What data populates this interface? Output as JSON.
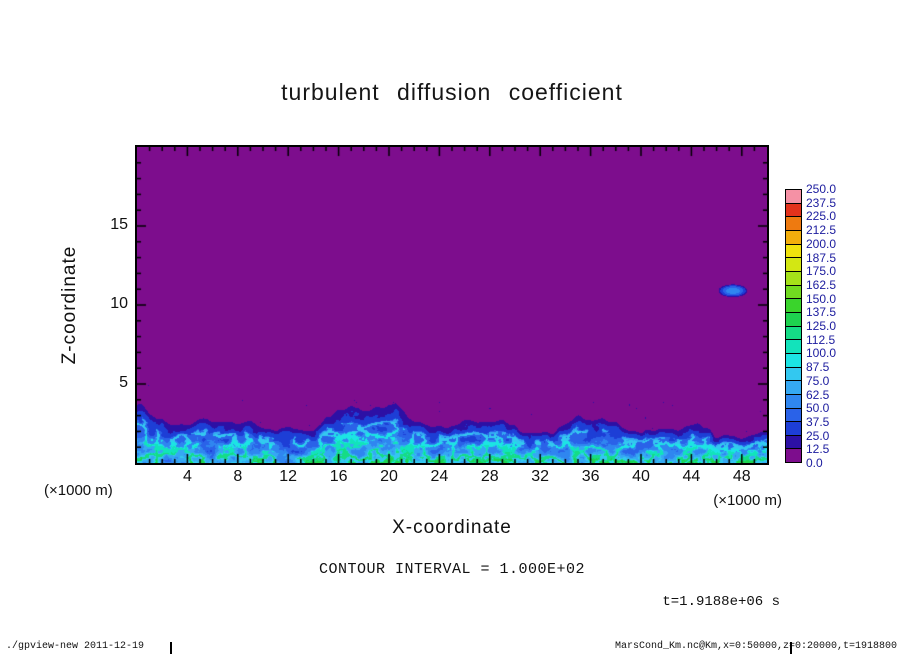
{
  "title": "turbulent diffusion coefficient",
  "plot": {
    "x_axis": {
      "label": "X-coordinate",
      "unit_label": "(×1000 m)",
      "range": [
        0,
        50
      ],
      "major_ticks": [
        4,
        8,
        12,
        16,
        20,
        24,
        28,
        32,
        36,
        40,
        44,
        48
      ],
      "minor_tick_step": 1
    },
    "y_axis": {
      "label": "Z-coordinate",
      "unit_label": "(×1000 m)",
      "range": [
        0,
        20
      ],
      "major_ticks": [
        5,
        10,
        15
      ],
      "minor_tick_step": 1
    },
    "frame_color": "#000000"
  },
  "colorbar": {
    "labels_top_to_bottom": [
      "250.0",
      "237.5",
      "225.0",
      "212.5",
      "200.0",
      "187.5",
      "175.0",
      "162.5",
      "150.0",
      "137.5",
      "125.0",
      "112.5",
      "100.0",
      "87.5",
      "75.0",
      "62.5",
      "50.0",
      "37.5",
      "25.0",
      "12.5",
      "0.0"
    ],
    "colors_bottom_to_top": [
      "#7d0d8d",
      "#2c10a5",
      "#1d3ed6",
      "#2a62e8",
      "#2f86f0",
      "#35a8f3",
      "#33c8f0",
      "#1ce4e4",
      "#12e3bb",
      "#15dc86",
      "#1ed24f",
      "#3ad42c",
      "#71da20",
      "#a5e119",
      "#d3e713",
      "#f0e20d",
      "#f2ae0c",
      "#ee7a10",
      "#e3321c",
      "#f591a5"
    ],
    "label_color": "#1b1b9e"
  },
  "annotations": {
    "contour_interval": "CONTOUR INTERVAL = 1.000E+02",
    "time_label": "t=1.9188e+06 s"
  },
  "footer": {
    "left": "./gpview-new  2011-12-19",
    "right": "MarsCond_Km.nc@Km,x=0:50000,z=0:20000,t=1918800"
  },
  "chart_data": {
    "type": "heatmap",
    "title": "turbulent diffusion coefficient",
    "xlabel": "X-coordinate (×1000 m)",
    "ylabel": "Z-coordinate (×1000 m)",
    "xlim": [
      0,
      50
    ],
    "ylim": [
      0,
      20
    ],
    "levels": [
      0,
      12.5,
      25,
      37.5,
      50,
      62.5,
      75,
      87.5,
      100,
      112.5,
      125,
      137.5,
      150,
      162.5,
      175,
      187.5,
      200,
      212.5,
      225,
      237.5,
      250
    ],
    "contour_interval": 100.0,
    "time_seconds": "1.9188e+06",
    "legend_position": "right-colorbar",
    "grid": false,
    "field_description": "Turbulent diffusion coefficient Km in an atmospheric convection simulation. Values are near 0 (lowest color bin, purple) everywhere above ~4.5 km. A turbulent convective boundary layer occupies 0 < z < ~2-4.5 km across all x, with undulating plume tops and bright cyan filamentary structures (values ~25-137.5) embedded in darker blue turbulence (~12.5-50). Sparse dark-blue speckles sit just above the layer top near z ~ 5. One small detached patch of enhanced Km (~25-62.5) floats near x ~ 47.5, z ~ 11.",
    "features": [
      {
        "type": "background",
        "region": "z above boundary layer",
        "value_range": [
          0,
          12.5
        ],
        "color": "purple"
      },
      {
        "type": "turbulent_boundary_layer",
        "region": "0 < z < ~2-4.5 km, all x",
        "value_range": [
          12.5,
          137.5
        ],
        "description": "convective plumes, cyan filaments in blue turbulence"
      },
      {
        "type": "detached_patch",
        "x": 47.5,
        "z": 11,
        "value_range": [
          25,
          62.5
        ]
      },
      {
        "type": "speckles",
        "region": "just above boundary-layer top (z ~ 5)",
        "value_range": [
          12.5,
          37.5
        ]
      }
    ],
    "render": {
      "seed_boundary": 11,
      "seed_field": 23,
      "seed_speckle": 31,
      "boundary_base_km": 0.8,
      "boundary_scale_km": 4.3,
      "blob": {
        "x": 47.3,
        "z": 10.9,
        "rx": 1.15,
        "rz": 0.4
      }
    }
  }
}
